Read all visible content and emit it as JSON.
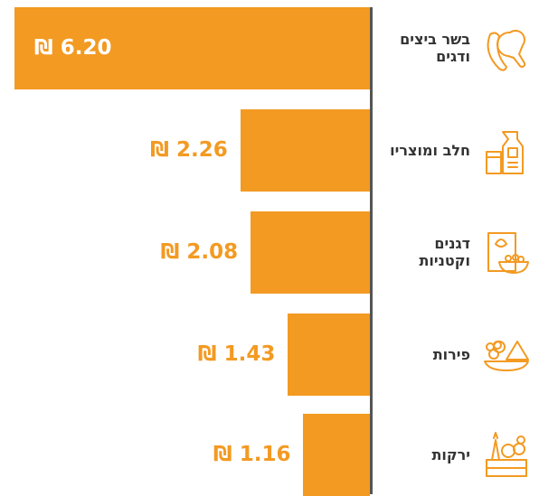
{
  "chart_data": {
    "type": "bar",
    "orientation": "horizontal",
    "categories": [
      "בשר ביצים ודגים",
      "חלב ומוצריו",
      "דגנים וקטניות",
      "פירות",
      "ירקות"
    ],
    "values": [
      6.2,
      2.26,
      2.08,
      1.43,
      1.16
    ],
    "value_labels": [
      "₪ 6.20",
      "₪ 2.26",
      "₪ 2.08",
      "₪ 1.43",
      "₪ 1.16"
    ],
    "color": "#f39a22"
  }
}
